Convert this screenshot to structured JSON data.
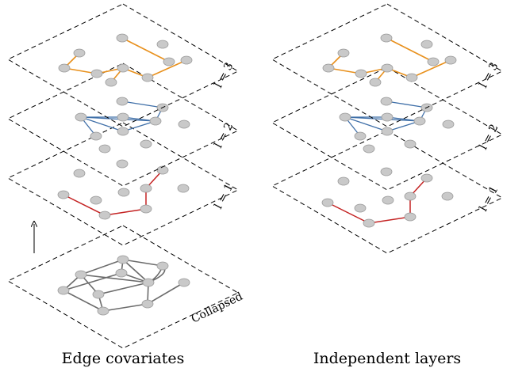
{
  "captions": {
    "left": "Edge covariates",
    "right": "Independent layers"
  },
  "layer_labels": {
    "l3": "l = 3",
    "l2": "l = 2",
    "l1": "l = 1",
    "collapsed": "Collapsed"
  },
  "colors": {
    "layer3": "#e8901c",
    "layer2": "#3f6fa8",
    "layer1": "#c42323",
    "collapsed": "#6b6b6b",
    "node": "#c9c9c9"
  }
}
